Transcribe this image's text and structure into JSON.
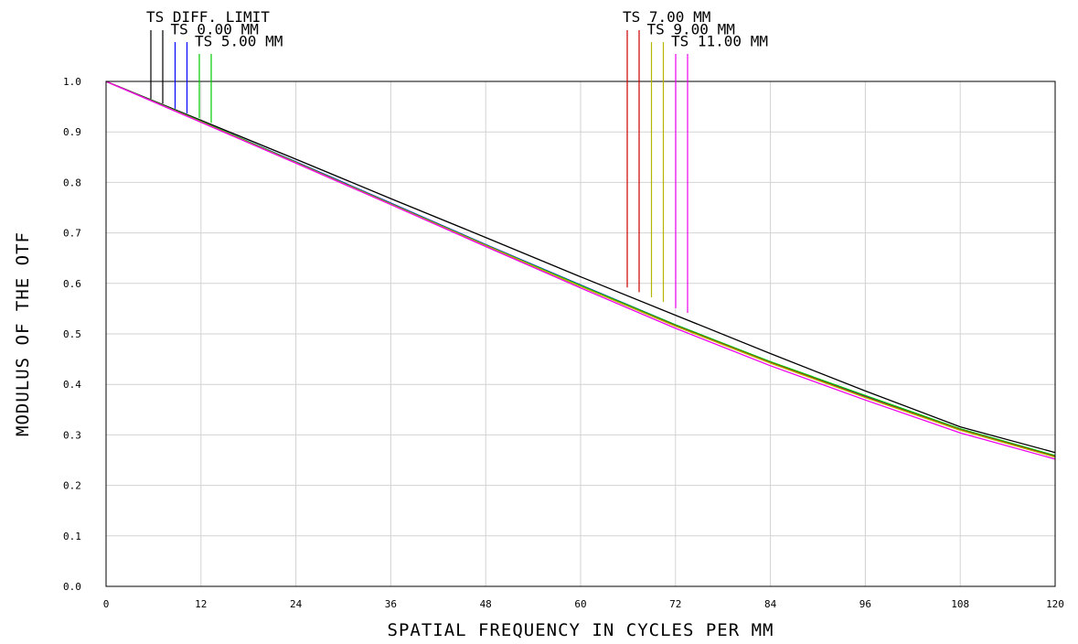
{
  "chart_data": {
    "type": "line",
    "xlabel": "SPATIAL FREQUENCY IN CYCLES PER MM",
    "ylabel": "MODULUS OF THE OTF",
    "xlim": [
      0,
      120
    ],
    "ylim": [
      0,
      1
    ],
    "grid": true,
    "xticks": [
      "0",
      "12",
      "24",
      "36",
      "48",
      "60",
      "72",
      "84",
      "96",
      "108",
      "120"
    ],
    "yticks": [
      "0.0",
      "0.1",
      "0.2",
      "0.3",
      "0.4",
      "0.5",
      "0.6",
      "0.7",
      "0.8",
      "0.9",
      "1.0"
    ],
    "x": [
      0,
      12,
      24,
      36,
      48,
      60,
      72,
      84,
      96,
      108,
      120
    ],
    "series": [
      {
        "name": "TS DIFF. LIMIT",
        "color": "#000000",
        "values": [
          1.0,
          0.923,
          0.846,
          0.768,
          0.691,
          0.613,
          0.537,
          0.461,
          0.387,
          0.316,
          0.265
        ]
      },
      {
        "name": "TS 0.00 MM",
        "color": "#0000ff",
        "values": [
          1.0,
          0.921,
          0.841,
          0.759,
          0.677,
          0.597,
          0.518,
          0.444,
          0.376,
          0.31,
          0.258
        ]
      },
      {
        "name": "TS 5.00 MM",
        "color": "#00cc00",
        "values": [
          1.0,
          0.921,
          0.84,
          0.758,
          0.676,
          0.596,
          0.518,
          0.445,
          0.378,
          0.312,
          0.259
        ]
      },
      {
        "name": "TS 7.00 MM",
        "color": "#cc0000",
        "values": [
          1.0,
          0.92,
          0.839,
          0.757,
          0.675,
          0.594,
          0.516,
          0.443,
          0.375,
          0.31,
          0.257
        ]
      },
      {
        "name": "TS 9.00 MM",
        "color": "#b5b500",
        "values": [
          1.0,
          0.92,
          0.839,
          0.757,
          0.675,
          0.594,
          0.515,
          0.442,
          0.374,
          0.309,
          0.256
        ]
      },
      {
        "name": "TS 11.00 MM",
        "color": "#ee00ee",
        "values": [
          1.0,
          0.919,
          0.838,
          0.756,
          0.673,
          0.591,
          0.511,
          0.437,
          0.369,
          0.304,
          0.252
        ]
      }
    ]
  }
}
